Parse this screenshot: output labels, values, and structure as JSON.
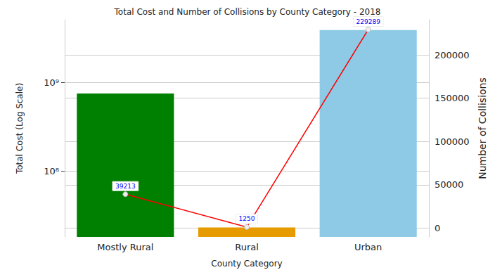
{
  "chart_data": {
    "type": "bar",
    "title": "Total Cost and Number of Collisions by County Category - 2018",
    "x_label": "County Category",
    "y_label": "Total Cost (Log Scale)",
    "y2_label": "Number of Collisions",
    "categories": [
      "Mostly Rural",
      "Rural",
      "Urban"
    ],
    "log": "y",
    "grid": true,
    "ylim": [
      18000000,
      5100000000
    ],
    "yticks": [
      {
        "value": 100000000,
        "label": "10⁸"
      },
      {
        "value": 1000000000,
        "label": "10⁹"
      }
    ],
    "y2lim": [
      -10152,
      240691
    ],
    "y2ticks": [
      0,
      50000,
      100000,
      150000,
      200000
    ],
    "series": [
      {
        "type": "bar",
        "values": [
          750000000,
          23000000,
          3900000000
        ],
        "colors": [
          "#008000",
          "#e69b00",
          "#8ecae6"
        ]
      },
      {
        "type": "line",
        "axis": "y2",
        "color": "#ff0000",
        "marker": "circle",
        "data_labels": true,
        "values": [
          39213,
          1250,
          229289
        ]
      }
    ]
  }
}
